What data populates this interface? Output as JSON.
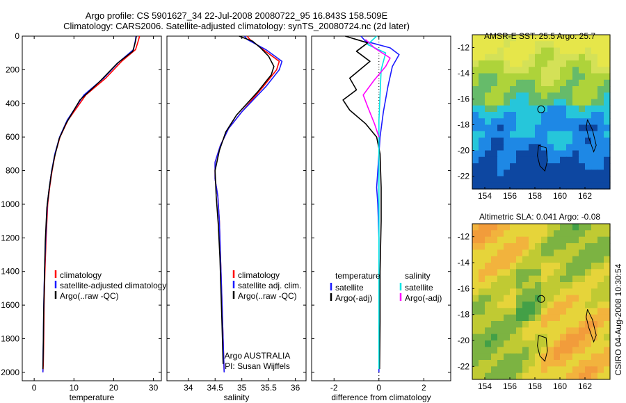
{
  "header": {
    "title_line1": "Argo profile: CS 5901627_34 22-Jul-2008 20080722_95 16.843S 158.509E",
    "title_line2": "Climatology: CARS2006. Satellite-adjusted climatology: synTS_20080724.nc (2d later)"
  },
  "side_caption": "CSIRO 04-Aug-2008 10:30:54",
  "colors": {
    "red": "#ff0000",
    "blue": "#1a1aff",
    "black": "#000000",
    "cyan": "#00e5e5",
    "magenta": "#ff00ff"
  },
  "chart_data": [
    {
      "type": "line",
      "xlabel": "temperature",
      "xlim": [
        -3,
        32
      ],
      "ylim": [
        2050,
        0
      ],
      "xticks": [
        0,
        10,
        20,
        30
      ],
      "yticks": [
        0,
        200,
        400,
        600,
        800,
        1000,
        1200,
        1400,
        1600,
        1800,
        2000
      ],
      "legend": [
        "climatology",
        "satellite-adjusted climatology",
        "Argo(..raw -QC)"
      ],
      "series": [
        {
          "name": "climatology",
          "color": "red",
          "x": [
            26.5,
            26.3,
            25.5,
            22,
            18,
            13,
            8.5,
            6.5,
            5.3,
            4.5,
            3.9,
            3.4,
            3.0,
            2.7,
            2.5,
            2.4,
            2.3,
            2.2
          ],
          "y": [
            0,
            20,
            80,
            150,
            250,
            350,
            500,
            600,
            700,
            800,
            900,
            1000,
            1200,
            1400,
            1600,
            1800,
            1950,
            2000
          ]
        },
        {
          "name": "satellite-adjusted climatology",
          "color": "blue",
          "x": [
            25.6,
            25.5,
            25.0,
            21.5,
            17.5,
            12.5,
            8.3,
            6.4,
            5.2,
            4.4,
            3.8,
            3.3,
            2.9,
            2.6,
            2.4,
            2.3,
            2.2,
            2.2
          ],
          "y": [
            0,
            20,
            80,
            150,
            250,
            350,
            500,
            600,
            700,
            800,
            900,
            1000,
            1200,
            1400,
            1600,
            1800,
            1950,
            2000
          ]
        },
        {
          "name": "Argo(..raw -QC)",
          "color": "black",
          "x": [
            25.7,
            25.5,
            24.8,
            21,
            16.5,
            11.5,
            8,
            6.3,
            5.1,
            4.3,
            3.7,
            3.2,
            2.8,
            2.6,
            2.4,
            2.3,
            2.2
          ],
          "y": [
            0,
            30,
            90,
            160,
            270,
            380,
            520,
            610,
            720,
            820,
            920,
            1020,
            1220,
            1420,
            1620,
            1820,
            1980
          ]
        }
      ]
    },
    {
      "type": "line",
      "xlabel": "salinity",
      "xlim": [
        33.6,
        36.2
      ],
      "ylim": [
        2050,
        0
      ],
      "xticks": [
        34,
        34.5,
        35,
        35.5,
        36
      ],
      "yticks": [
        0,
        200,
        400,
        600,
        800,
        1000,
        1200,
        1400,
        1600,
        1800,
        2000
      ],
      "legend": [
        "climatology",
        "satellite adj. clim.",
        "Argo(..raw -QC)"
      ],
      "annotation": [
        "Argo AUSTRALIA",
        "PI: Susan Wijffels"
      ],
      "series": [
        {
          "name": "climatology",
          "color": "red",
          "x": [
            35.1,
            35.15,
            35.4,
            35.7,
            35.65,
            35.4,
            35.0,
            34.75,
            34.6,
            34.5,
            34.5,
            34.55,
            34.58,
            34.6,
            34.62,
            34.64,
            34.66,
            34.67
          ],
          "y": [
            0,
            20,
            80,
            150,
            200,
            300,
            450,
            550,
            650,
            750,
            850,
            950,
            1100,
            1300,
            1500,
            1700,
            1900,
            2000
          ]
        },
        {
          "name": "satellite adj. clim.",
          "color": "blue",
          "x": [
            35.05,
            35.1,
            35.45,
            35.75,
            35.7,
            35.45,
            35.0,
            34.75,
            34.6,
            34.5,
            34.5,
            34.55,
            34.58,
            34.6,
            34.62,
            34.64,
            34.66,
            34.67
          ],
          "y": [
            0,
            20,
            80,
            150,
            200,
            300,
            450,
            550,
            650,
            750,
            850,
            950,
            1100,
            1300,
            1500,
            1700,
            1900,
            2000
          ]
        },
        {
          "name": "Argo(..raw -QC)",
          "color": "black",
          "x": [
            34.95,
            35.2,
            35.35,
            35.5,
            35.6,
            35.55,
            35.3,
            34.9,
            34.7,
            34.58,
            34.5,
            34.52,
            34.56,
            34.59,
            34.61,
            34.63,
            34.65
          ],
          "y": [
            0,
            30,
            70,
            120,
            180,
            230,
            330,
            470,
            570,
            680,
            800,
            950,
            1120,
            1320,
            1520,
            1720,
            1950
          ]
        }
      ]
    },
    {
      "type": "line",
      "xlabel": "difference from climatology",
      "xlim": [
        -3,
        3.2
      ],
      "ylim": [
        2050,
        0
      ],
      "xticks": [
        -2,
        0,
        2
      ],
      "yticks": [
        0,
        200,
        400,
        600,
        800,
        1000,
        1200,
        1400,
        1600,
        1800,
        2000
      ],
      "legend_temperature": {
        "heading": "temperature",
        "items": [
          "satellite",
          "Argo(-adj)"
        ]
      },
      "legend_salinity": {
        "heading": "salinity",
        "items": [
          "satellite",
          "Argo(-adj)"
        ]
      },
      "series": [
        {
          "name": "temperature satellite",
          "color": "blue",
          "x": [
            -0.8,
            -0.6,
            0.5,
            0.9,
            0.6,
            0.4,
            0.2,
            0.05,
            0,
            -0.05,
            -0.1,
            -0.05,
            0,
            0,
            0,
            0
          ],
          "y": [
            0,
            30,
            70,
            110,
            180,
            300,
            450,
            600,
            700,
            800,
            900,
            1000,
            1200,
            1500,
            1800,
            2000
          ]
        },
        {
          "name": "temperature Argo(-adj)",
          "color": "black",
          "x": [
            -1.5,
            -0.5,
            -1.0,
            -0.4,
            -1.3,
            -1.0,
            -1.6,
            -1.3,
            -0.6,
            -0.1,
            0.05,
            0.1,
            0.1,
            0.05,
            0.05,
            0.03
          ],
          "y": [
            0,
            40,
            90,
            150,
            250,
            320,
            380,
            440,
            520,
            600,
            700,
            900,
            1100,
            1400,
            1700,
            1980
          ]
        },
        {
          "name": "salinity satellite",
          "color": "cyan",
          "x": [
            -0.1,
            -0.5,
            0.3,
            0.1,
            0.05,
            0,
            0,
            0,
            0,
            0,
            0
          ],
          "y": [
            0,
            50,
            100,
            200,
            350,
            500,
            700,
            1000,
            1400,
            1800,
            1980
          ]
        },
        {
          "name": "salinity Argo(-adj)",
          "color": "magenta",
          "x": [
            -0.6,
            -0.2,
            0.5,
            0.3,
            -0.2,
            -0.7,
            -0.5,
            -0.2,
            0
          ],
          "y": [
            20,
            70,
            130,
            180,
            260,
            350,
            420,
            520,
            600
          ]
        }
      ]
    },
    {
      "type": "heatmap",
      "title": "AMSR-E SST: 25.5 Argo: 25.7",
      "xlim": [
        153,
        164
      ],
      "ylim": [
        -23,
        -11
      ],
      "xticks": [
        154,
        156,
        158,
        160,
        162
      ],
      "yticks": [
        -12,
        -14,
        -16,
        -18,
        -20,
        -22
      ],
      "marker": {
        "lon": 158.5,
        "lat": -16.8
      }
    },
    {
      "type": "heatmap",
      "title": "Altimetric SLA: 0.041 Argo: -0.08",
      "xlim": [
        153,
        164
      ],
      "ylim": [
        -23,
        -11
      ],
      "xticks": [
        154,
        156,
        158,
        160,
        162
      ],
      "yticks": [
        -12,
        -14,
        -16,
        -18,
        -20,
        -22
      ],
      "marker": {
        "lon": 158.5,
        "lat": -16.8
      }
    }
  ]
}
